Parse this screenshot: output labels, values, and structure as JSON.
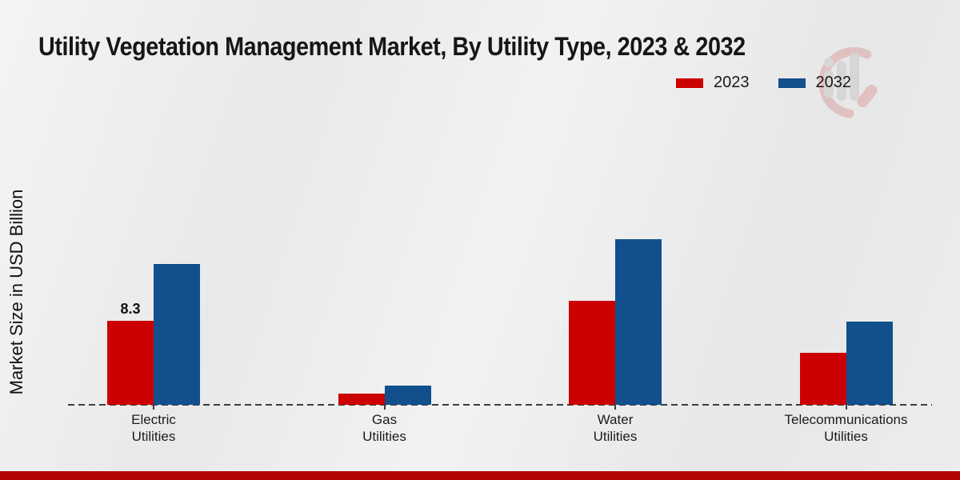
{
  "chart_data": {
    "type": "bar",
    "title": "Utility Vegetation Management Market, By Utility Type, 2023 & 2032",
    "ylabel": "Market Size in USD Billion",
    "xlabel": "",
    "categories": [
      "Electric Utilities",
      "Gas Utilities",
      "Water Utilities",
      "Telecommunications Utilities"
    ],
    "series": [
      {
        "name": "2023",
        "color": "#cc0000",
        "values": [
          8.3,
          1.1,
          10.3,
          5.1
        ]
      },
      {
        "name": "2032",
        "color": "#11508c",
        "values": [
          13.9,
          1.9,
          16.4,
          8.2
        ]
      }
    ],
    "data_labels": [
      [
        "8.3",
        "",
        "",
        ""
      ],
      [
        "",
        "",
        "",
        ""
      ]
    ],
    "ylim": [
      0,
      20
    ],
    "grid": false,
    "legend_position": "top-right",
    "baseline_style": "dashed",
    "watermark_icon": "market-research-logo",
    "bottom_strip_color": "#b30303"
  }
}
